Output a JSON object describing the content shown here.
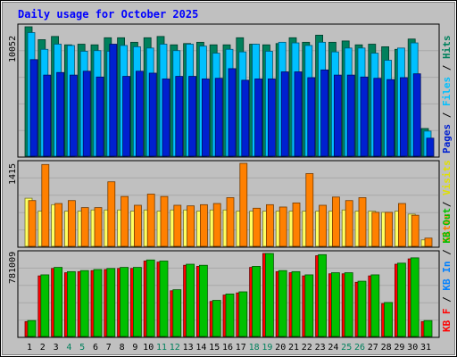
{
  "chart_data": {
    "type": "bar",
    "title": "Daily usage for October 2025",
    "days": [
      "1",
      "2",
      "3",
      "4",
      "5",
      "6",
      "7",
      "8",
      "9",
      "10",
      "11",
      "12",
      "13",
      "14",
      "15",
      "16",
      "17",
      "18",
      "19",
      "20",
      "21",
      "22",
      "23",
      "24",
      "25",
      "26",
      "27",
      "28",
      "29",
      "30",
      "31"
    ],
    "weekend_days": [
      "4",
      "5",
      "11",
      "12",
      "18",
      "19",
      "25",
      "26"
    ],
    "panels": [
      {
        "ylabel_max": "10052",
        "ymax": 10052,
        "legend": [
          "Pages",
          "Files",
          "Hits"
        ],
        "series": [
          {
            "name": "Hits",
            "color": "#00805c",
            "values": [
              10052,
              9050,
              9300,
              8650,
              8700,
              8650,
              9200,
              9200,
              8850,
              9200,
              9300,
              8650,
              8750,
              8850,
              8650,
              8650,
              9200,
              8700,
              8650,
              8750,
              9200,
              8850,
              9400,
              8850,
              8950,
              8650,
              8700,
              8500,
              8300,
              9100,
              2150
            ]
          },
          {
            "name": "Files",
            "color": "#00c0ff",
            "values": [
              9600,
              8300,
              8700,
              8600,
              8150,
              8200,
              8150,
              8600,
              8500,
              8400,
              8700,
              8200,
              8700,
              8550,
              8000,
              8300,
              8100,
              8700,
              8150,
              8850,
              8800,
              8600,
              8850,
              8100,
              8400,
              8400,
              8000,
              7450,
              8400,
              8800,
              1950
            ]
          },
          {
            "name": "Pages",
            "color": "#0020d0",
            "values": [
              7500,
              6300,
              6500,
              6300,
              6600,
              6150,
              8700,
              6200,
              6600,
              6450,
              6000,
              6200,
              6200,
              6000,
              6050,
              6800,
              5900,
              6000,
              6000,
              6550,
              6550,
              6100,
              6700,
              6300,
              6300,
              6150,
              6050,
              5950,
              6100,
              6400,
              1400
            ]
          }
        ]
      },
      {
        "ylabel_max": "1415",
        "ymax": 1415,
        "legend": [
          "Sites",
          "Visits"
        ],
        "series": [
          {
            "name": "Visits",
            "color": "#ffff60",
            "values": [
              820,
              600,
              710,
              600,
              600,
              620,
              620,
              620,
              600,
              620,
              600,
              620,
              620,
              600,
              620,
              620,
              600,
              600,
              600,
              600,
              600,
              600,
              600,
              600,
              620,
              600,
              600,
              580,
              600,
              550,
              110
            ]
          },
          {
            "name": "Sites",
            "color": "#ff8000",
            "values": [
              780,
              1395,
              730,
              780,
              660,
              660,
              1100,
              850,
              700,
              890,
              850,
              700,
              690,
              710,
              730,
              830,
              1415,
              650,
              710,
              670,
              740,
              1240,
              700,
              840,
              780,
              830,
              580,
              580,
              730,
              530,
              140
            ]
          }
        ]
      },
      {
        "ylabel_max": "781009",
        "ymax": 781009,
        "legend": [
          "KB F",
          "KB In",
          "KB Out"
        ],
        "series": [
          {
            "name": "KB F",
            "color": "#ff0000",
            "values": [
              140000,
              570000,
              640000,
              600000,
              610000,
              620000,
              630000,
              640000,
              640000,
              710000,
              700000,
              430000,
              670000,
              660000,
              330000,
              390000,
              410000,
              650000,
              781009,
              610000,
              600000,
              570000,
              760000,
              590000,
              590000,
              510000,
              570000,
              310000,
              680000,
              730000,
              140000
            ]
          },
          {
            "name": "KB In",
            "color": "#00c000",
            "values": [
              150000,
              580000,
              650000,
              610000,
              620000,
              630000,
              640000,
              650000,
              650000,
              720000,
              710000,
              440000,
              680000,
              670000,
              340000,
              400000,
              420000,
              660000,
              781000,
              620000,
              610000,
              580000,
              770000,
              600000,
              600000,
              520000,
              580000,
              320000,
              690000,
              740000,
              150000
            ]
          }
        ]
      }
    ]
  }
}
